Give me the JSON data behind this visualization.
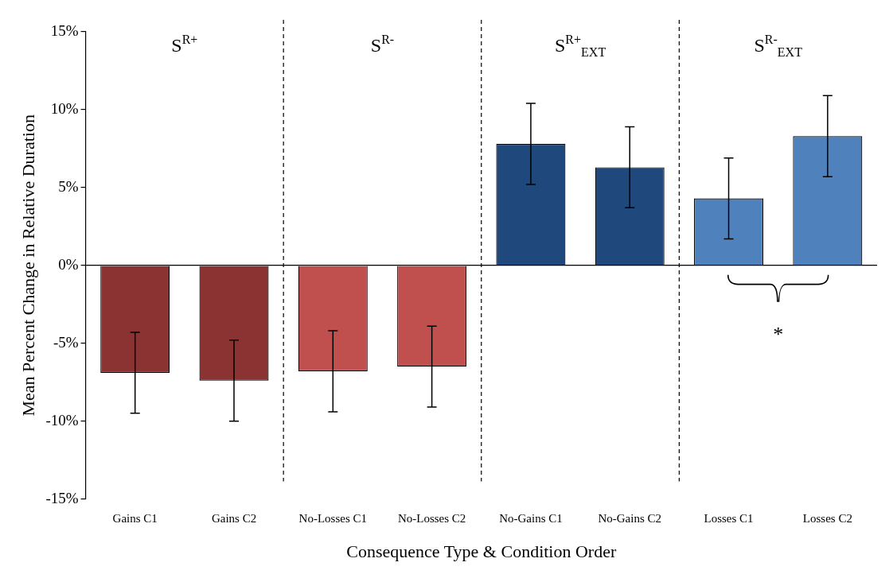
{
  "chart_data": {
    "type": "bar",
    "xlabel": "Consequence Type & Condition Order",
    "ylabel": "Mean Percent Change in Relative Duration",
    "categories": [
      "Gains C1",
      "Gains C2",
      "No-Losses C1",
      "No-Losses C2",
      "No-Gains C1",
      "No-Gains C2",
      "Losses C1",
      "Losses C2"
    ],
    "values": [
      -6.9,
      -7.4,
      -6.8,
      -6.5,
      7.8,
      6.3,
      4.3,
      8.3
    ],
    "colors": [
      "#8b3232",
      "#8b3232",
      "#c0504d",
      "#c0504d",
      "#1f497d",
      "#1f497d",
      "#4f81bd",
      "#4f81bd"
    ],
    "errors": [
      2.6,
      2.6,
      2.6,
      2.6,
      2.6,
      2.6,
      2.6,
      2.6
    ],
    "ylim": [
      -15,
      15
    ],
    "yticks": [
      {
        "value": -15,
        "label": "-15%"
      },
      {
        "value": -10,
        "label": "-10%"
      },
      {
        "value": -5,
        "label": "-5%"
      },
      {
        "value": 0,
        "label": "0%"
      },
      {
        "value": 5,
        "label": "5%"
      },
      {
        "value": 10,
        "label": "10%"
      },
      {
        "value": 15,
        "label": "15%"
      }
    ],
    "annotations": [
      "S$^{R+}$",
      "S$^{R-}$",
      "S$^{R+}$$_{EXT}$",
      "S$^{R-}$$_{EXT}$",
      "*"
    ],
    "grid": false,
    "legend": false
  }
}
